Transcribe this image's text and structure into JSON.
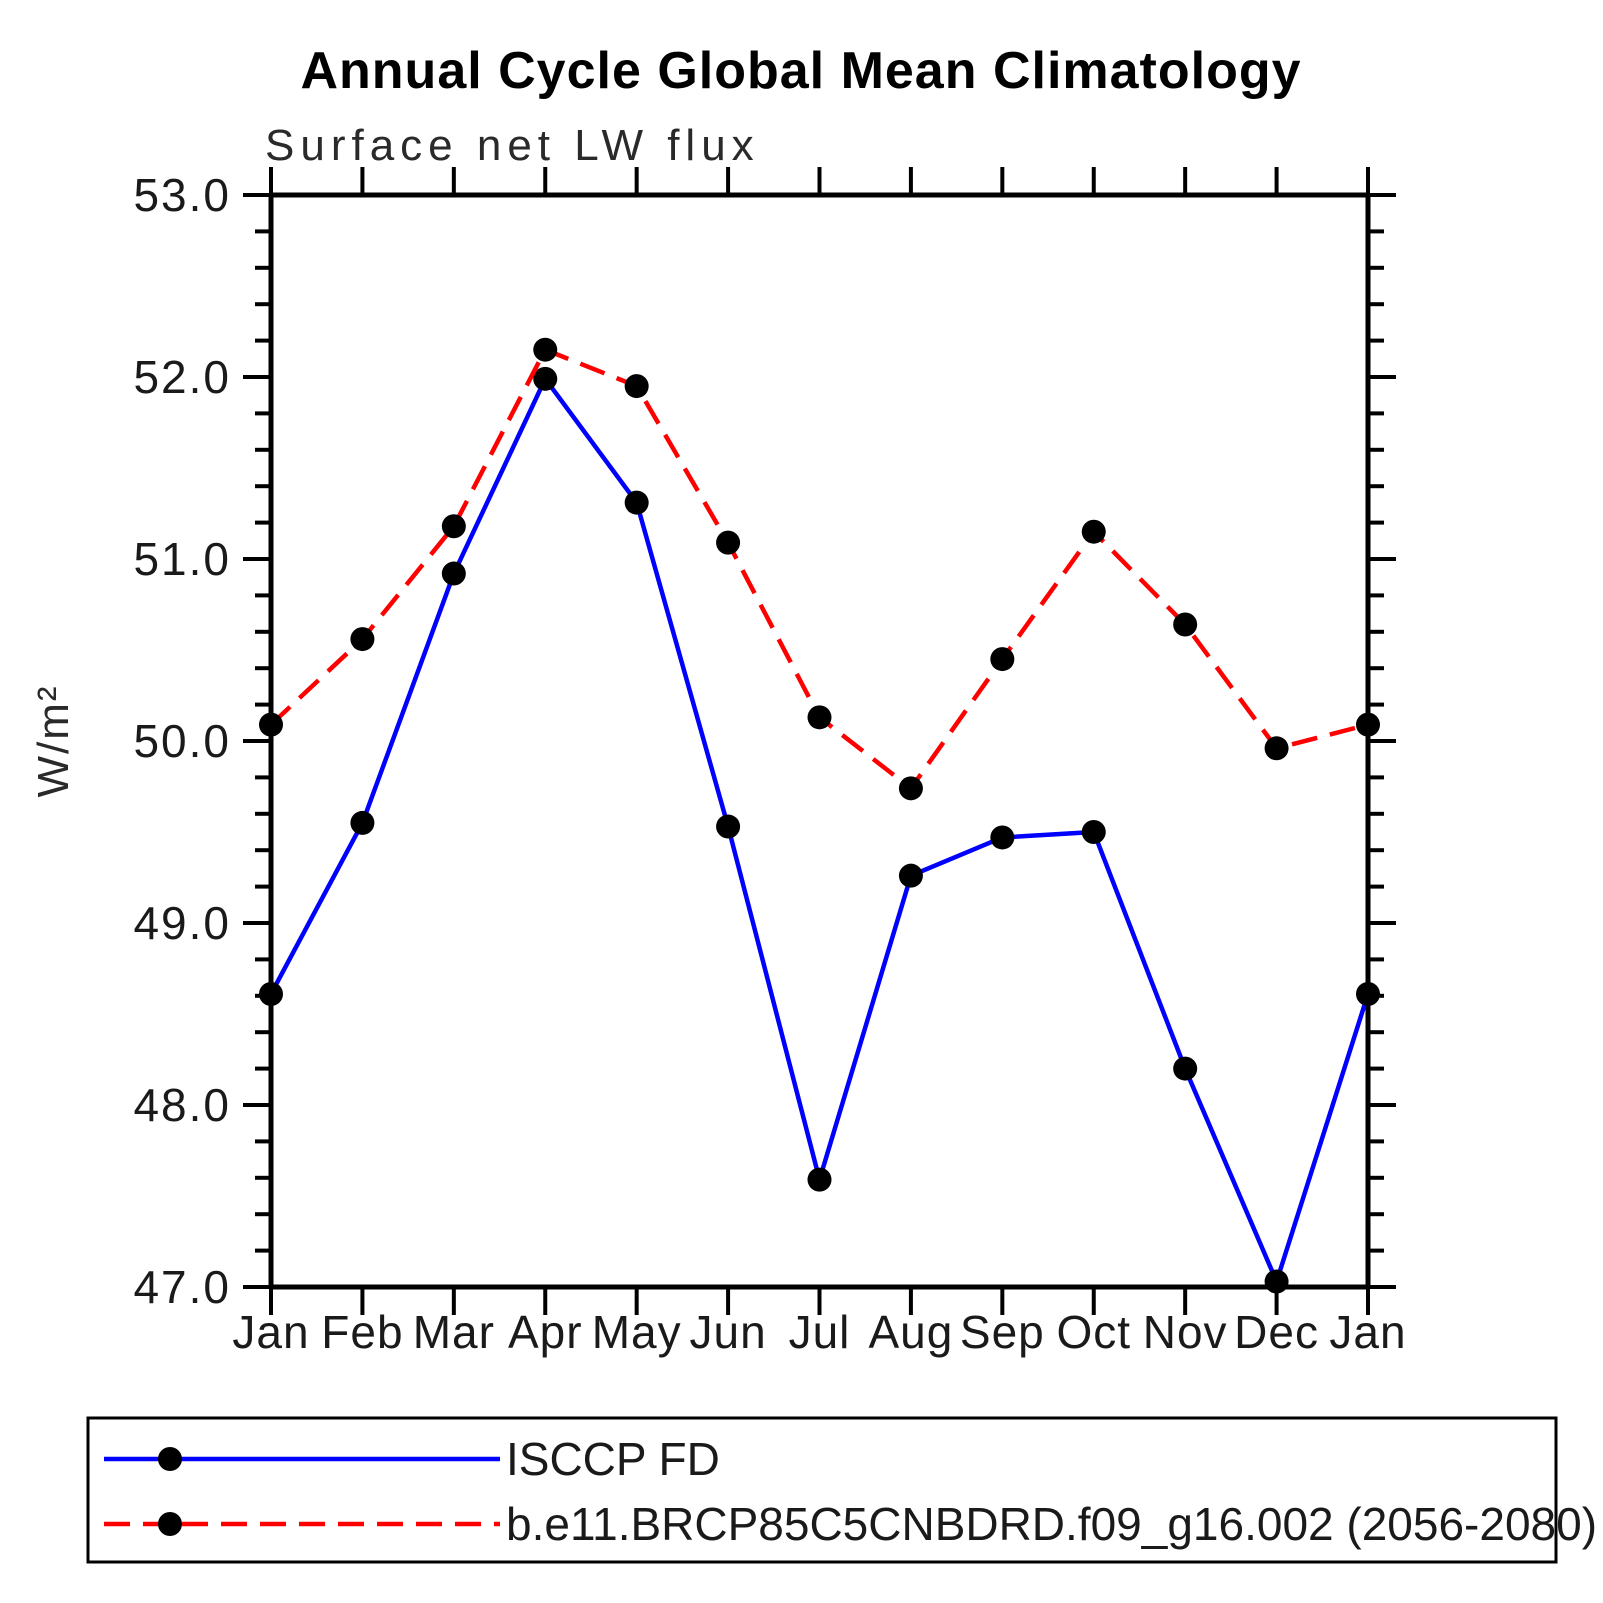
{
  "title": "Annual Cycle Global Mean Climatology",
  "subtitle": "Surface net LW flux",
  "chart_data": {
    "type": "line",
    "categories": [
      "Jan",
      "Feb",
      "Mar",
      "Apr",
      "May",
      "Jun",
      "Jul",
      "Aug",
      "Sep",
      "Oct",
      "Nov",
      "Dec",
      "Jan"
    ],
    "series": [
      {
        "name": "ISCCP FD",
        "color": "#0000ff",
        "line_style": "solid",
        "marker": "filled-circle",
        "marker_color": "#000000",
        "values": [
          48.61,
          49.55,
          50.92,
          51.99,
          51.31,
          49.53,
          47.59,
          49.26,
          49.47,
          49.5,
          48.2,
          47.03,
          48.61
        ]
      },
      {
        "name": "b.e11.BRCP85C5CNBDRD.f09_g16.002 (2056-2080)",
        "color": "#ff0000",
        "line_style": "dashed",
        "marker": "filled-circle",
        "marker_color": "#000000",
        "values": [
          50.09,
          50.56,
          51.18,
          52.15,
          51.95,
          51.09,
          50.13,
          49.74,
          50.45,
          51.15,
          50.64,
          49.96,
          50.09
        ]
      }
    ],
    "xlabel": "",
    "ylabel": "W/m²",
    "ylim": [
      47.0,
      53.0
    ],
    "ytick_labels": [
      "53.0",
      "52.0",
      "51.0",
      "50.0",
      "49.0",
      "48.0",
      "47.0"
    ],
    "yminor_step": 0.2,
    "grid": "off",
    "legend_position": "bottom-box",
    "axis_color": "#000000"
  }
}
